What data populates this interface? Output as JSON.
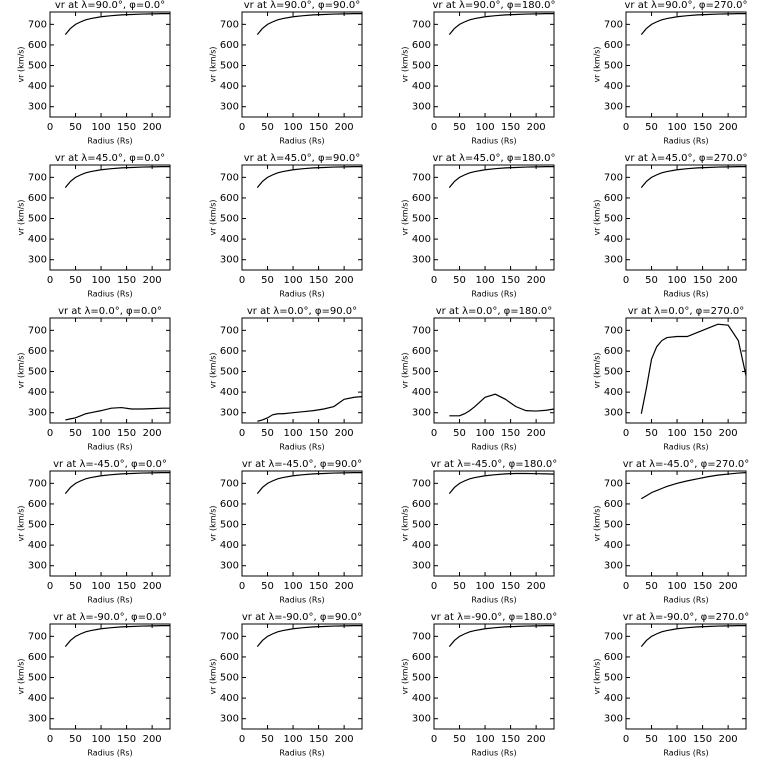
{
  "chart_data": [
    {
      "type": "line",
      "title": "vr at λ=90.0°, φ=0.0°",
      "x_label": "Radius (Rs)",
      "y_label": "vr (km/s)",
      "x": [
        30,
        40,
        50,
        60,
        70,
        80,
        100,
        120,
        140,
        160,
        180,
        200,
        220,
        235
      ],
      "series": [
        {
          "color": "#000000",
          "values": [
            650,
            680,
            700,
            712,
            722,
            728,
            737,
            742,
            746,
            748,
            750,
            751,
            752,
            752
          ]
        }
      ],
      "xlim": [
        0,
        235
      ],
      "ylim": [
        250,
        760
      ],
      "xticks": [
        0,
        50,
        100,
        150,
        200
      ],
      "yticks": [
        300,
        400,
        500,
        600,
        700
      ]
    },
    {
      "type": "line",
      "title": "vr at λ=90.0°, φ=90.0°",
      "x_label": "Radius (Rs)",
      "y_label": "vr (km/s)",
      "x": [
        30,
        40,
        50,
        60,
        70,
        80,
        100,
        120,
        140,
        160,
        180,
        200,
        220,
        235
      ],
      "series": [
        {
          "color": "#000000",
          "values": [
            650,
            680,
            700,
            712,
            722,
            728,
            737,
            742,
            746,
            748,
            750,
            751,
            752,
            752
          ]
        }
      ],
      "xlim": [
        0,
        235
      ],
      "ylim": [
        250,
        760
      ],
      "xticks": [
        0,
        50,
        100,
        150,
        200
      ],
      "yticks": [
        300,
        400,
        500,
        600,
        700
      ]
    },
    {
      "type": "line",
      "title": "vr at λ=90.0°, φ=180.0°",
      "x_label": "Radius (Rs)",
      "y_label": "vr (km/s)",
      "x": [
        30,
        40,
        50,
        60,
        70,
        80,
        100,
        120,
        140,
        160,
        180,
        200,
        220,
        235
      ],
      "series": [
        {
          "color": "#000000",
          "values": [
            650,
            680,
            700,
            712,
            722,
            728,
            737,
            742,
            746,
            748,
            750,
            751,
            752,
            752
          ]
        }
      ],
      "xlim": [
        0,
        235
      ],
      "ylim": [
        250,
        760
      ],
      "xticks": [
        0,
        50,
        100,
        150,
        200
      ],
      "yticks": [
        300,
        400,
        500,
        600,
        700
      ]
    },
    {
      "type": "line",
      "title": "vr at λ=90.0°, φ=270.0°",
      "x_label": "Radius (Rs)",
      "y_label": "vr (km/s)",
      "x": [
        30,
        40,
        50,
        60,
        70,
        80,
        100,
        120,
        140,
        160,
        180,
        200,
        220,
        235
      ],
      "series": [
        {
          "color": "#000000",
          "values": [
            650,
            680,
            700,
            712,
            722,
            728,
            737,
            742,
            746,
            748,
            750,
            751,
            752,
            752
          ]
        }
      ],
      "xlim": [
        0,
        235
      ],
      "ylim": [
        250,
        760
      ],
      "xticks": [
        0,
        50,
        100,
        150,
        200
      ],
      "yticks": [
        300,
        400,
        500,
        600,
        700
      ]
    },
    {
      "type": "line",
      "title": "vr at λ=45.0°, φ=0.0°",
      "x_label": "Radius (Rs)",
      "y_label": "vr (km/s)",
      "x": [
        30,
        40,
        50,
        60,
        70,
        80,
        100,
        120,
        140,
        160,
        180,
        200,
        220,
        235
      ],
      "series": [
        {
          "color": "#000000",
          "values": [
            650,
            680,
            700,
            712,
            722,
            728,
            737,
            742,
            746,
            748,
            750,
            751,
            752,
            752
          ]
        }
      ],
      "xlim": [
        0,
        235
      ],
      "ylim": [
        250,
        760
      ],
      "xticks": [
        0,
        50,
        100,
        150,
        200
      ],
      "yticks": [
        300,
        400,
        500,
        600,
        700
      ]
    },
    {
      "type": "line",
      "title": "vr at λ=45.0°, φ=90.0°",
      "x_label": "Radius (Rs)",
      "y_label": "vr (km/s)",
      "x": [
        30,
        40,
        50,
        60,
        70,
        80,
        100,
        120,
        140,
        160,
        180,
        200,
        220,
        235
      ],
      "series": [
        {
          "color": "#000000",
          "values": [
            650,
            680,
            700,
            712,
            722,
            728,
            737,
            742,
            746,
            748,
            750,
            751,
            752,
            752
          ]
        }
      ],
      "xlim": [
        0,
        235
      ],
      "ylim": [
        250,
        760
      ],
      "xticks": [
        0,
        50,
        100,
        150,
        200
      ],
      "yticks": [
        300,
        400,
        500,
        600,
        700
      ]
    },
    {
      "type": "line",
      "title": "vr at λ=45.0°, φ=180.0°",
      "x_label": "Radius (Rs)",
      "y_label": "vr (km/s)",
      "x": [
        30,
        40,
        50,
        60,
        70,
        80,
        100,
        120,
        140,
        160,
        180,
        200,
        220,
        235
      ],
      "series": [
        {
          "color": "#000000",
          "values": [
            650,
            680,
            700,
            712,
            722,
            728,
            737,
            742,
            746,
            748,
            750,
            751,
            752,
            752
          ]
        }
      ],
      "xlim": [
        0,
        235
      ],
      "ylim": [
        250,
        760
      ],
      "xticks": [
        0,
        50,
        100,
        150,
        200
      ],
      "yticks": [
        300,
        400,
        500,
        600,
        700
      ]
    },
    {
      "type": "line",
      "title": "vr at λ=45.0°, φ=270.0°",
      "x_label": "Radius (Rs)",
      "y_label": "vr (km/s)",
      "x": [
        30,
        40,
        50,
        60,
        70,
        80,
        100,
        120,
        140,
        160,
        180,
        200,
        220,
        235
      ],
      "series": [
        {
          "color": "#000000",
          "values": [
            650,
            680,
            700,
            712,
            722,
            728,
            737,
            742,
            746,
            748,
            750,
            751,
            752,
            752
          ]
        }
      ],
      "xlim": [
        0,
        235
      ],
      "ylim": [
        250,
        760
      ],
      "xticks": [
        0,
        50,
        100,
        150,
        200
      ],
      "yticks": [
        300,
        400,
        500,
        600,
        700
      ]
    },
    {
      "type": "line",
      "title": "vr at λ=0.0°, φ=0.0°",
      "x_label": "Radius (Rs)",
      "y_label": "vr (km/s)",
      "x": [
        30,
        40,
        50,
        60,
        70,
        80,
        100,
        120,
        140,
        160,
        180,
        200,
        220,
        235
      ],
      "series": [
        {
          "color": "#000000",
          "values": [
            265,
            270,
            275,
            285,
            295,
            300,
            310,
            322,
            325,
            318,
            318,
            320,
            322,
            322
          ]
        }
      ],
      "xlim": [
        0,
        235
      ],
      "ylim": [
        250,
        760
      ],
      "xticks": [
        0,
        50,
        100,
        150,
        200
      ],
      "yticks": [
        300,
        400,
        500,
        600,
        700
      ]
    },
    {
      "type": "line",
      "title": "vr at λ=0.0°, φ=90.0°",
      "x_label": "Radius (Rs)",
      "y_label": "vr (km/s)",
      "x": [
        30,
        40,
        50,
        60,
        70,
        80,
        100,
        120,
        140,
        160,
        180,
        200,
        220,
        235
      ],
      "series": [
        {
          "color": "#000000",
          "values": [
            258,
            265,
            275,
            290,
            295,
            295,
            300,
            305,
            310,
            318,
            330,
            365,
            375,
            378
          ]
        }
      ],
      "xlim": [
        0,
        235
      ],
      "ylim": [
        250,
        760
      ],
      "xticks": [
        0,
        50,
        100,
        150,
        200
      ],
      "yticks": [
        300,
        400,
        500,
        600,
        700
      ]
    },
    {
      "type": "line",
      "title": "vr at λ=0.0°, φ=180.0°",
      "x_label": "Radius (Rs)",
      "y_label": "vr (km/s)",
      "x": [
        30,
        40,
        50,
        60,
        70,
        80,
        100,
        120,
        140,
        160,
        180,
        200,
        220,
        235
      ],
      "series": [
        {
          "color": "#000000",
          "values": [
            285,
            285,
            285,
            295,
            310,
            330,
            375,
            390,
            365,
            330,
            310,
            308,
            312,
            318
          ]
        }
      ],
      "xlim": [
        0,
        235
      ],
      "ylim": [
        250,
        760
      ],
      "xticks": [
        0,
        50,
        100,
        150,
        200
      ],
      "yticks": [
        300,
        400,
        500,
        600,
        700
      ]
    },
    {
      "type": "line",
      "title": "vr at λ=0.0°, φ=270.0°",
      "x_label": "Radius (Rs)",
      "y_label": "vr (km/s)",
      "x": [
        30,
        40,
        50,
        60,
        70,
        80,
        100,
        120,
        140,
        160,
        180,
        200,
        220,
        235
      ],
      "series": [
        {
          "color": "#000000",
          "values": [
            295,
            420,
            560,
            620,
            650,
            665,
            670,
            670,
            690,
            710,
            730,
            725,
            650,
            480
          ]
        }
      ],
      "xlim": [
        0,
        235
      ],
      "ylim": [
        250,
        760
      ],
      "xticks": [
        0,
        50,
        100,
        150,
        200
      ],
      "yticks": [
        300,
        400,
        500,
        600,
        700
      ]
    },
    {
      "type": "line",
      "title": "vr at λ=-45.0°, φ=0.0°",
      "x_label": "Radius (Rs)",
      "y_label": "vr (km/s)",
      "x": [
        30,
        40,
        50,
        60,
        70,
        80,
        100,
        120,
        140,
        160,
        180,
        200,
        220,
        235
      ],
      "series": [
        {
          "color": "#000000",
          "values": [
            650,
            680,
            700,
            712,
            722,
            728,
            737,
            742,
            746,
            748,
            750,
            751,
            752,
            752
          ]
        }
      ],
      "xlim": [
        0,
        235
      ],
      "ylim": [
        250,
        760
      ],
      "xticks": [
        0,
        50,
        100,
        150,
        200
      ],
      "yticks": [
        300,
        400,
        500,
        600,
        700
      ]
    },
    {
      "type": "line",
      "title": "vr at λ=-45.0°, φ=90.0°",
      "x_label": "Radius (Rs)",
      "y_label": "vr (km/s)",
      "x": [
        30,
        40,
        50,
        60,
        70,
        80,
        100,
        120,
        140,
        160,
        180,
        200,
        220,
        235
      ],
      "series": [
        {
          "color": "#000000",
          "values": [
            650,
            680,
            700,
            712,
            722,
            728,
            737,
            742,
            746,
            748,
            750,
            751,
            752,
            752
          ]
        }
      ],
      "xlim": [
        0,
        235
      ],
      "ylim": [
        250,
        760
      ],
      "xticks": [
        0,
        50,
        100,
        150,
        200
      ],
      "yticks": [
        300,
        400,
        500,
        600,
        700
      ]
    },
    {
      "type": "line",
      "title": "vr at λ=-45.0°, φ=180.0°",
      "x_label": "Radius (Rs)",
      "y_label": "vr (km/s)",
      "x": [
        30,
        40,
        50,
        60,
        70,
        80,
        100,
        120,
        140,
        160,
        180,
        200,
        220,
        235
      ],
      "series": [
        {
          "color": "#000000",
          "values": [
            650,
            680,
            700,
            712,
            722,
            728,
            737,
            742,
            746,
            748,
            748,
            747,
            746,
            745
          ]
        }
      ],
      "xlim": [
        0,
        235
      ],
      "ylim": [
        250,
        760
      ],
      "xticks": [
        0,
        50,
        100,
        150,
        200
      ],
      "yticks": [
        300,
        400,
        500,
        600,
        700
      ]
    },
    {
      "type": "line",
      "title": "vr at λ=-45.0°, φ=270.0°",
      "x_label": "Radius (Rs)",
      "y_label": "vr (km/s)",
      "x": [
        30,
        40,
        50,
        60,
        70,
        80,
        100,
        120,
        140,
        160,
        180,
        200,
        220,
        235
      ],
      "series": [
        {
          "color": "#000000",
          "values": [
            625,
            640,
            655,
            665,
            675,
            685,
            700,
            712,
            722,
            732,
            740,
            745,
            750,
            752
          ]
        }
      ],
      "xlim": [
        0,
        235
      ],
      "ylim": [
        250,
        760
      ],
      "xticks": [
        0,
        50,
        100,
        150,
        200
      ],
      "yticks": [
        300,
        400,
        500,
        600,
        700
      ]
    },
    {
      "type": "line",
      "title": "vr at λ=-90.0°, φ=0.0°",
      "x_label": "Radius (Rs)",
      "y_label": "vr (km/s)",
      "x": [
        30,
        40,
        50,
        60,
        70,
        80,
        100,
        120,
        140,
        160,
        180,
        200,
        220,
        235
      ],
      "series": [
        {
          "color": "#000000",
          "values": [
            650,
            680,
            700,
            712,
            722,
            728,
            737,
            742,
            746,
            748,
            750,
            751,
            752,
            752
          ]
        }
      ],
      "xlim": [
        0,
        235
      ],
      "ylim": [
        250,
        760
      ],
      "xticks": [
        0,
        50,
        100,
        150,
        200
      ],
      "yticks": [
        300,
        400,
        500,
        600,
        700
      ]
    },
    {
      "type": "line",
      "title": "vr at λ=-90.0°, φ=90.0°",
      "x_label": "Radius (Rs)",
      "y_label": "vr (km/s)",
      "x": [
        30,
        40,
        50,
        60,
        70,
        80,
        100,
        120,
        140,
        160,
        180,
        200,
        220,
        235
      ],
      "series": [
        {
          "color": "#000000",
          "values": [
            650,
            680,
            700,
            712,
            722,
            728,
            737,
            742,
            746,
            748,
            750,
            751,
            752,
            752
          ]
        }
      ],
      "xlim": [
        0,
        235
      ],
      "ylim": [
        250,
        760
      ],
      "xticks": [
        0,
        50,
        100,
        150,
        200
      ],
      "yticks": [
        300,
        400,
        500,
        600,
        700
      ]
    },
    {
      "type": "line",
      "title": "vr at λ=-90.0°, φ=180.0°",
      "x_label": "Radius (Rs)",
      "y_label": "vr (km/s)",
      "x": [
        30,
        40,
        50,
        60,
        70,
        80,
        100,
        120,
        140,
        160,
        180,
        200,
        220,
        235
      ],
      "series": [
        {
          "color": "#000000",
          "values": [
            650,
            680,
            700,
            712,
            722,
            728,
            737,
            742,
            746,
            748,
            750,
            751,
            752,
            752
          ]
        }
      ],
      "xlim": [
        0,
        235
      ],
      "ylim": [
        250,
        760
      ],
      "xticks": [
        0,
        50,
        100,
        150,
        200
      ],
      "yticks": [
        300,
        400,
        500,
        600,
        700
      ]
    },
    {
      "type": "line",
      "title": "vr at λ=-90.0°, φ=270.0°",
      "x_label": "Radius (Rs)",
      "y_label": "vr (km/s)",
      "x": [
        30,
        40,
        50,
        60,
        70,
        80,
        100,
        120,
        140,
        160,
        180,
        200,
        220,
        235
      ],
      "series": [
        {
          "color": "#000000",
          "values": [
            650,
            680,
            700,
            712,
            722,
            728,
            737,
            742,
            746,
            748,
            750,
            751,
            752,
            752
          ]
        }
      ],
      "xlim": [
        0,
        235
      ],
      "ylim": [
        250,
        760
      ],
      "xticks": [
        0,
        50,
        100,
        150,
        200
      ],
      "yticks": [
        300,
        400,
        500,
        600,
        700
      ]
    }
  ]
}
